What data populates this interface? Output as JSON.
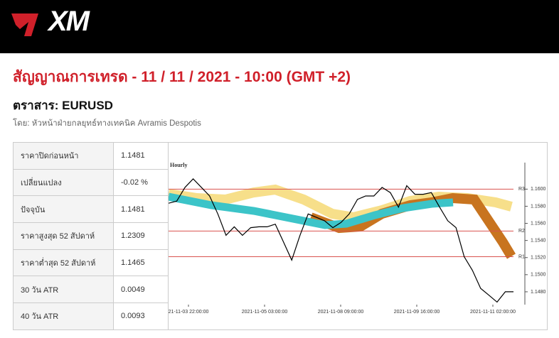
{
  "header": {
    "logo": "XM"
  },
  "title": "สัญญาณการเทรด - 11 / 11 / 2021 - 10:00 (GMT +2)",
  "instrument": "ตราสาร: EURUSD",
  "byline": "โดย: หัวหน้าฝ่ายกลยุทธ์ทางเทคนิค Avramis Despotis",
  "table": {
    "rows": [
      [
        "ราคาปิดก่อนหน้า",
        "1.1481"
      ],
      [
        "เปลี่ยนแปลง",
        "-0.02 %"
      ],
      [
        "ปัจจุบัน",
        "1.1481"
      ],
      [
        "ราคาสูงสุด 52 สัปดาห์",
        "1.2309"
      ],
      [
        "ราคาต่ำสุด 52 สัปดาห์",
        "1.1465"
      ],
      [
        "30 วัน ATR",
        "0.0049"
      ],
      [
        "40 วัน ATR",
        "0.0093"
      ]
    ]
  },
  "chart_data": {
    "type": "line",
    "subtitle": "Hourly",
    "color": "#000000",
    "values": [
      1.15835,
      1.1586,
      1.1602,
      1.1612,
      1.1602,
      1.1592,
      1.1571,
      1.1546,
      1.1556,
      1.1546,
      1.1555,
      1.1556,
      1.1556,
      1.1559,
      1.1538,
      1.1517,
      1.1546,
      1.1571,
      1.1567,
      1.1563,
      1.1555,
      1.1561,
      1.1571,
      1.1588,
      1.1592,
      1.1592,
      1.1602,
      1.1596,
      1.1579,
      1.1604,
      1.1594,
      1.1594,
      1.1596,
      1.1579,
      1.1563,
      1.1555,
      1.1521,
      1.1505,
      1.1484,
      1.1476,
      1.1468,
      1.148,
      1.148
    ],
    "x_labels": [
      "21-11-03 22:00:00",
      "2021-11-05 03:00:00",
      "2021-11-08 09:00:00",
      "2021-11-09 16:00:00",
      "2021-11-11 02:00:00"
    ],
    "ylim": [
      1.1465,
      1.1631
    ],
    "yticks": [
      {
        "value": 1.16,
        "label": "1.1600"
      },
      {
        "value": 1.158,
        "label": "1.1580"
      },
      {
        "value": 1.156,
        "label": "1.1560"
      },
      {
        "value": 1.154,
        "label": "1.1540"
      },
      {
        "value": 1.152,
        "label": "1.1520"
      },
      {
        "value": 1.15,
        "label": "1.1500"
      },
      {
        "value": 1.148,
        "label": "1.1480"
      }
    ],
    "levels": [
      {
        "name": "R3",
        "value": 1.16,
        "color": "#d9534f"
      },
      {
        "name": "R2",
        "value": 1.1551,
        "color": "#d9534f"
      },
      {
        "name": "R1",
        "value": 1.1521,
        "color": "#d9534f"
      }
    ]
  }
}
